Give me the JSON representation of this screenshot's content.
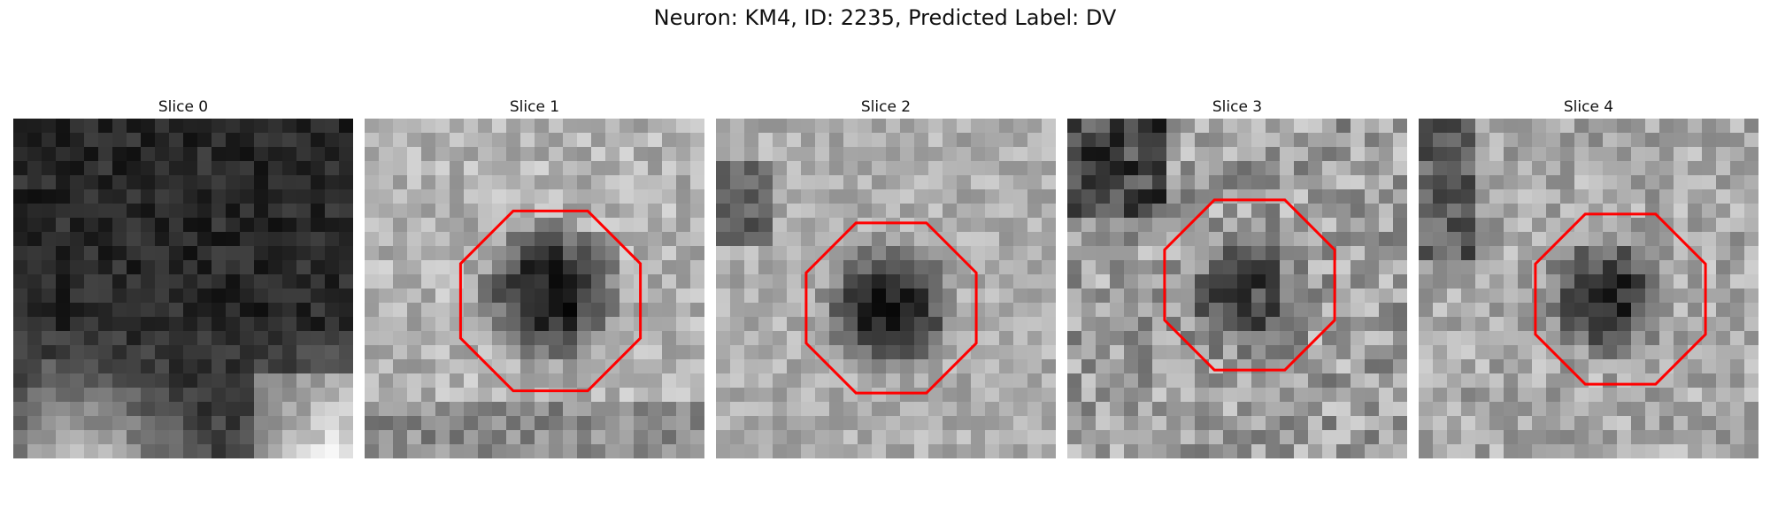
{
  "figure": {
    "title": "Neuron: KM4, ID: 2235, Predicted Label: DV"
  },
  "outline_color": "#ff0000",
  "panels": [
    {
      "title": "Slice 0",
      "has_outline": false,
      "tone": {
        "base": 0.16,
        "dark_center": 0.0,
        "bright_bottom": 0.55,
        "noise": 0.1,
        "seed": 11
      }
    },
    {
      "title": "Slice 1",
      "has_outline": true,
      "tone": {
        "base": 0.7,
        "dark_center": 0.55,
        "bright_bottom": 0.0,
        "noise": 0.14,
        "seed": 23
      }
    },
    {
      "title": "Slice 2",
      "has_outline": true,
      "tone": {
        "base": 0.68,
        "dark_center": 0.55,
        "bright_bottom": 0.0,
        "noise": 0.12,
        "seed": 37
      }
    },
    {
      "title": "Slice 3",
      "has_outline": true,
      "tone": {
        "base": 0.62,
        "dark_center": 0.35,
        "bright_bottom": 0.0,
        "noise": 0.2,
        "seed": 41
      }
    },
    {
      "title": "Slice 4",
      "has_outline": true,
      "tone": {
        "base": 0.66,
        "dark_center": 0.45,
        "bright_bottom": 0.0,
        "noise": 0.16,
        "seed": 53
      }
    }
  ]
}
